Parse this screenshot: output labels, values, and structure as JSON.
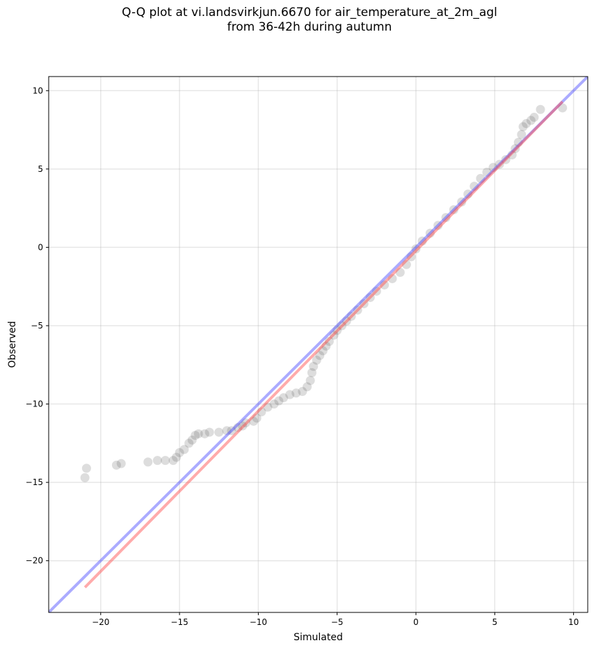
{
  "chart_data": {
    "type": "scatter",
    "title": "Q-Q plot at vi.landsvirkjun.6670 for air_temperature_at_2m_agl",
    "subtitle": "from 36-42h during autumn",
    "xlabel": "Simulated",
    "ylabel": "Observed",
    "xlim": [
      -23.3,
      10.9
    ],
    "ylim": [
      -23.3,
      10.9
    ],
    "x_ticks": [
      -20,
      -15,
      -10,
      -5,
      0,
      5,
      10
    ],
    "y_ticks": [
      -20,
      -15,
      -10,
      -5,
      0,
      5,
      10
    ],
    "x_tick_labels": [
      "−20",
      "−15",
      "−10",
      "−5",
      "0",
      "5",
      "10"
    ],
    "y_tick_labels": [
      "−20",
      "−15",
      "−10",
      "−5",
      "0",
      "5",
      "10"
    ],
    "grid": true,
    "point_color": "#555555",
    "series": [
      {
        "type": "scatter",
        "points": [
          [
            -21.0,
            -14.7
          ],
          [
            -20.9,
            -14.1
          ],
          [
            -19.0,
            -13.9
          ],
          [
            -18.7,
            -13.8
          ],
          [
            -17.0,
            -13.7
          ],
          [
            -16.4,
            -13.6
          ],
          [
            -15.9,
            -13.6
          ],
          [
            -15.4,
            -13.6
          ],
          [
            -15.2,
            -13.4
          ],
          [
            -15.0,
            -13.1
          ],
          [
            -14.7,
            -12.9
          ],
          [
            -14.4,
            -12.5
          ],
          [
            -14.2,
            -12.3
          ],
          [
            -14.0,
            -12.0
          ],
          [
            -13.8,
            -11.9
          ],
          [
            -13.4,
            -11.9
          ],
          [
            -13.1,
            -11.8
          ],
          [
            -12.5,
            -11.8
          ],
          [
            -12.0,
            -11.7
          ],
          [
            -11.7,
            -11.7
          ],
          [
            -11.3,
            -11.5
          ],
          [
            -11.0,
            -11.4
          ],
          [
            -10.8,
            -11.2
          ],
          [
            -10.3,
            -11.1
          ],
          [
            -10.1,
            -10.9
          ],
          [
            -9.8,
            -10.5
          ],
          [
            -9.4,
            -10.2
          ],
          [
            -9.0,
            -10.0
          ],
          [
            -8.7,
            -9.8
          ],
          [
            -8.4,
            -9.6
          ],
          [
            -8.0,
            -9.4
          ],
          [
            -7.6,
            -9.3
          ],
          [
            -7.2,
            -9.2
          ],
          [
            -6.9,
            -8.9
          ],
          [
            -6.7,
            -8.5
          ],
          [
            -6.6,
            -8.0
          ],
          [
            -6.5,
            -7.6
          ],
          [
            -6.3,
            -7.2
          ],
          [
            -6.1,
            -6.9
          ],
          [
            -5.9,
            -6.6
          ],
          [
            -5.7,
            -6.3
          ],
          [
            -5.5,
            -6.0
          ],
          [
            -5.2,
            -5.6
          ],
          [
            -5.0,
            -5.3
          ],
          [
            -4.7,
            -5.0
          ],
          [
            -4.4,
            -4.7
          ],
          [
            -4.1,
            -4.4
          ],
          [
            -3.7,
            -4.0
          ],
          [
            -3.3,
            -3.6
          ],
          [
            -2.9,
            -3.2
          ],
          [
            -2.5,
            -2.8
          ],
          [
            -2.0,
            -2.4
          ],
          [
            -1.5,
            -2.0
          ],
          [
            -1.0,
            -1.6
          ],
          [
            -0.6,
            -1.1
          ],
          [
            -0.3,
            -0.6
          ],
          [
            0.0,
            -0.1
          ],
          [
            0.4,
            0.4
          ],
          [
            0.9,
            0.9
          ],
          [
            1.4,
            1.4
          ],
          [
            1.9,
            1.9
          ],
          [
            2.4,
            2.4
          ],
          [
            2.9,
            2.9
          ],
          [
            3.3,
            3.4
          ],
          [
            3.7,
            3.9
          ],
          [
            4.1,
            4.4
          ],
          [
            4.5,
            4.8
          ],
          [
            4.9,
            5.1
          ],
          [
            5.3,
            5.3
          ],
          [
            5.7,
            5.6
          ],
          [
            6.1,
            5.9
          ],
          [
            6.3,
            6.3
          ],
          [
            6.5,
            6.7
          ],
          [
            6.7,
            7.2
          ],
          [
            6.8,
            7.7
          ],
          [
            7.0,
            7.9
          ],
          [
            7.3,
            8.1
          ],
          [
            7.5,
            8.3
          ],
          [
            7.9,
            8.8
          ],
          [
            9.3,
            8.9
          ]
        ]
      },
      {
        "type": "line",
        "name": "",
        "color": "#4444ff",
        "points": [
          [
            -23.3,
            -23.3
          ],
          [
            10.9,
            10.9
          ]
        ]
      },
      {
        "type": "line",
        "name": "",
        "color": "#ff4444",
        "points": [
          [
            -21.0,
            -21.7
          ],
          [
            9.3,
            9.3
          ]
        ]
      }
    ]
  }
}
